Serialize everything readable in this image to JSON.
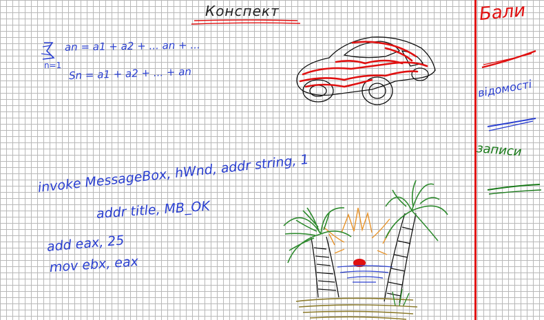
{
  "page": {
    "title": "Конспект"
  },
  "notes": {
    "formula_sum_line": "an = a1 + a2 + ... an + ...",
    "formula_sum_index": "n=1",
    "formula_partial_sum": "Sn = a1 + a2 + ... + an",
    "code_line_1": "invoke MessageBox, hWnd, addr string, 1",
    "code_line_2": "addr title, MB_OK",
    "code_line_3": "add eax, 25",
    "code_line_4": "mov ebx, eax"
  },
  "margin": {
    "label_1": "Бали",
    "label_2": "відомості",
    "label_3": "записи"
  },
  "colors": {
    "ink_blue": "#2a3fd0",
    "ink_red": "#e01010",
    "ink_green": "#1a7a1a",
    "grid": "#b8b8b8"
  }
}
